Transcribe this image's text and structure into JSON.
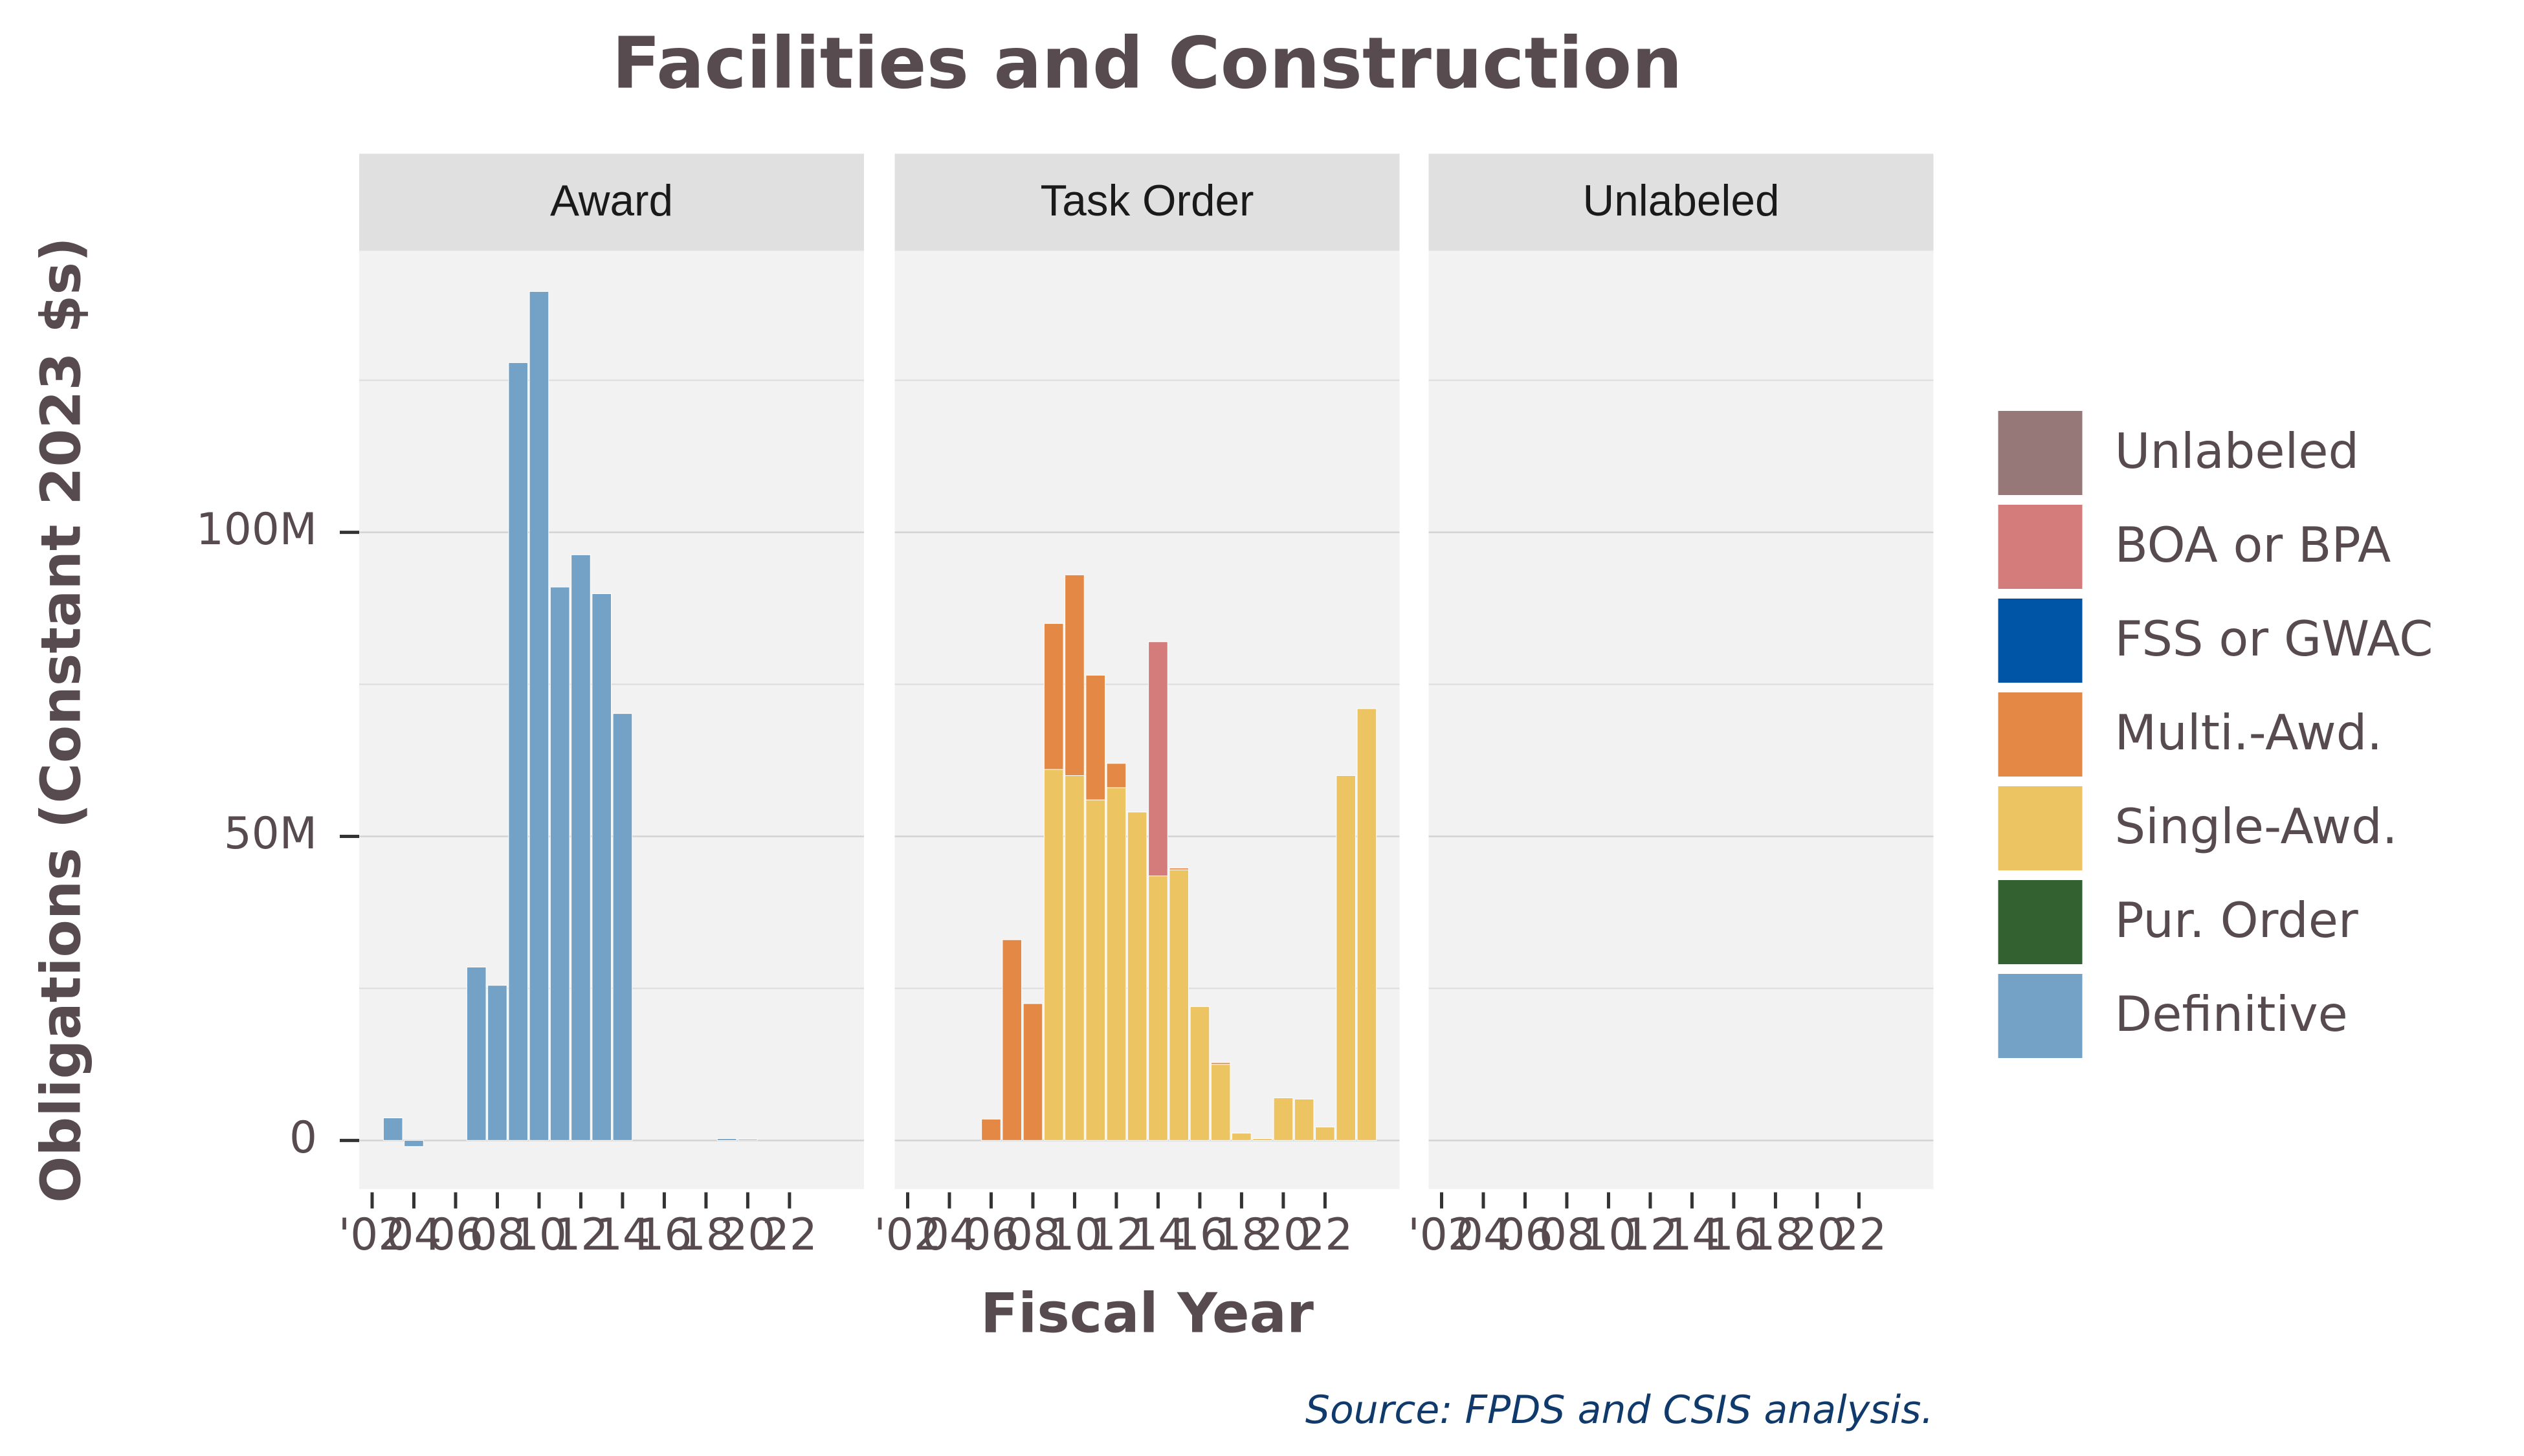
{
  "chart_data": {
    "type": "bar",
    "stacked": true,
    "title": "Facilities and Construction",
    "x_label": "Fiscal Year",
    "y_label": "Obligations (Constant 2023 $s)",
    "source": "Source: FPDS and CSIS analysis.",
    "x": [
      2002,
      2003,
      2004,
      2005,
      2006,
      2007,
      2008,
      2009,
      2010,
      2011,
      2012,
      2013,
      2014,
      2015,
      2016,
      2017,
      2018,
      2019,
      2020,
      2021,
      2022,
      2023,
      2024
    ],
    "xlim": [
      2001.38,
      2025.57
    ],
    "xticks": [
      {
        "value": 2002,
        "label": "'02"
      },
      {
        "value": 2004,
        "label": "04"
      },
      {
        "value": 2006,
        "label": "06"
      },
      {
        "value": 2008,
        "label": "08"
      },
      {
        "value": 2010,
        "label": "10"
      },
      {
        "value": 2012,
        "label": "12"
      },
      {
        "value": 2014,
        "label": "14"
      },
      {
        "value": 2016,
        "label": "16"
      },
      {
        "value": 2018,
        "label": "18"
      },
      {
        "value": 2020,
        "label": "20"
      },
      {
        "value": 2022,
        "label": "22"
      }
    ],
    "ylim": [
      -8,
      146.3
    ],
    "yticks": [
      {
        "value": 0,
        "label": "0"
      },
      {
        "value": 50,
        "label": "50M"
      },
      {
        "value": 100,
        "label": "100M"
      }
    ],
    "minor_grid": [
      25,
      75,
      125
    ],
    "grid": true,
    "legend": "right",
    "series": [
      {
        "name": "Unlabeled",
        "color": "#967878"
      },
      {
        "name": "BOA or BPA",
        "color": "#d47c7c"
      },
      {
        "name": "FSS or GWAC",
        "color": "#0055a6"
      },
      {
        "name": "Multi.-Awd.",
        "color": "#e38945"
      },
      {
        "name": "Single-Awd.",
        "color": "#ecc462"
      },
      {
        "name": "Pur. Order",
        "color": "#336130"
      },
      {
        "name": "Definitive",
        "color": "#73a2c6"
      }
    ],
    "facets": [
      {
        "label": "Award",
        "values": [
          [
            null,
            null,
            null,
            null,
            null,
            null,
            null,
            null,
            null,
            null,
            null,
            null,
            null,
            null,
            null,
            null,
            null,
            null,
            null,
            null,
            null,
            null,
            null
          ],
          [
            null,
            null,
            null,
            null,
            null,
            null,
            null,
            null,
            null,
            null,
            null,
            null,
            null,
            null,
            null,
            null,
            null,
            null,
            null,
            null,
            null,
            null,
            null
          ],
          [
            null,
            null,
            null,
            null,
            null,
            null,
            null,
            null,
            null,
            null,
            null,
            null,
            null,
            null,
            null,
            null,
            null,
            null,
            null,
            null,
            null,
            null,
            null
          ],
          [
            null,
            null,
            null,
            null,
            null,
            null,
            null,
            null,
            null,
            null,
            null,
            null,
            null,
            null,
            null,
            null,
            null,
            null,
            null,
            null,
            null,
            null,
            null
          ],
          [
            null,
            null,
            null,
            null,
            null,
            null,
            null,
            null,
            null,
            null,
            null,
            null,
            null,
            null,
            null,
            null,
            null,
            null,
            null,
            null,
            null,
            null,
            null
          ],
          [
            null,
            null,
            null,
            null,
            null,
            null,
            null,
            null,
            null,
            null,
            null,
            null,
            null,
            null,
            null,
            null,
            null,
            null,
            null,
            null,
            null,
            null,
            null
          ],
          [
            null,
            3.7,
            -1,
            null,
            null,
            28.5,
            25.5,
            127.9,
            139.6,
            91,
            96.3,
            89.9,
            70.2,
            null,
            null,
            null,
            null,
            0.3,
            0.2,
            null,
            null,
            null,
            null
          ]
        ]
      },
      {
        "label": "Task Order",
        "values": [
          [
            null,
            null,
            null,
            null,
            null,
            null,
            null,
            null,
            null,
            null,
            null,
            null,
            null,
            null,
            null,
            null,
            null,
            null,
            null,
            null,
            null,
            null,
            null
          ],
          [
            null,
            null,
            null,
            null,
            null,
            null,
            null,
            null,
            null,
            null,
            null,
            null,
            38.5,
            null,
            null,
            null,
            null,
            null,
            null,
            null,
            null,
            null,
            null
          ],
          [
            null,
            null,
            null,
            null,
            null,
            null,
            null,
            null,
            null,
            null,
            null,
            null,
            null,
            null,
            null,
            null,
            null,
            null,
            null,
            null,
            null,
            null,
            null
          ],
          [
            null,
            null,
            null,
            null,
            3.5,
            33,
            22.5,
            24,
            33,
            20.5,
            4,
            null,
            null,
            0.3,
            null,
            0.3,
            null,
            null,
            null,
            null,
            null,
            null,
            null
          ],
          [
            null,
            null,
            null,
            null,
            null,
            null,
            null,
            61,
            60,
            56,
            58,
            54,
            43.5,
            44.5,
            22,
            12.5,
            1.2,
            0.3,
            7,
            6.8,
            2.2,
            60,
            71
          ],
          [
            null,
            null,
            null,
            null,
            null,
            null,
            null,
            null,
            null,
            null,
            null,
            null,
            null,
            null,
            null,
            null,
            null,
            null,
            null,
            null,
            null,
            null,
            null
          ],
          [
            null,
            null,
            null,
            null,
            null,
            null,
            null,
            null,
            null,
            null,
            null,
            null,
            null,
            null,
            null,
            null,
            null,
            null,
            null,
            null,
            null,
            null,
            null
          ]
        ]
      },
      {
        "label": "Unlabeled",
        "values": []
      }
    ]
  }
}
